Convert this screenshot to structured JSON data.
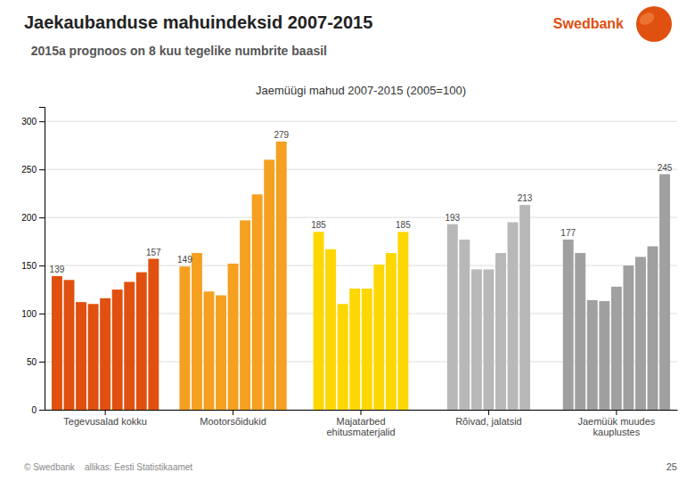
{
  "chart_data": {
    "type": "bar",
    "title": "Jaekaubanduse mahuindeksid 2007-2015",
    "subtitle": "  2015a prognoos on 8 kuu tegelike numbrite baasil",
    "annotations": [
      "Jaemüügi mahud 2007-2015 (2005=100)",
      "Swedbank",
      "© Swedbank    allikas: Eesti Statistikaamet",
      "25"
    ],
    "categories": [
      "Tegevusalad kokku",
      "Mootorsõidukid",
      "Majatarbed\nehitusmaterjalid",
      "Rõivad, jalatsid",
      "Jaemüük muudes\nkauplustes"
    ],
    "colors": [
      "#E05010",
      "#F5A020",
      "#FFD700",
      "#B8B8B8",
      "#A0A0A0"
    ],
    "series": [
      {
        "values": [
          139,
          149,
          185,
          193,
          177
        ],
        "value_labels": [
          "139",
          "149",
          "185",
          "193",
          "177"
        ]
      },
      {
        "values": [
          135,
          163,
          167,
          177,
          163
        ],
        "value_labels": [
          null,
          null,
          null,
          null,
          null
        ]
      },
      {
        "values": [
          112,
          123,
          110,
          146,
          114
        ],
        "value_labels": [
          null,
          null,
          null,
          null,
          null
        ]
      },
      {
        "values": [
          110,
          119,
          126,
          146,
          113
        ],
        "value_labels": [
          null,
          null,
          null,
          null,
          null
        ]
      },
      {
        "values": [
          116,
          152,
          126,
          163,
          128
        ],
        "value_labels": [
          null,
          null,
          null,
          null,
          null
        ]
      },
      {
        "values": [
          125,
          197,
          151,
          195,
          150
        ],
        "value_labels": [
          null,
          null,
          null,
          null,
          null
        ]
      },
      {
        "values": [
          133,
          224,
          163,
          213,
          159
        ],
        "value_labels": [
          null,
          null,
          null,
          "213",
          null
        ]
      },
      {
        "values": [
          143,
          260,
          185,
          null,
          170
        ],
        "value_labels": [
          null,
          null,
          "185",
          null,
          null
        ]
      },
      {
        "values": [
          157,
          279,
          null,
          null,
          245
        ],
        "value_labels": [
          "157",
          "279",
          null,
          null,
          "245"
        ]
      }
    ],
    "ylim": [
      0,
      315
    ],
    "yticks": [
      0,
      50,
      100,
      150,
      200,
      250,
      300
    ],
    "grid": true,
    "data_labels": true
  }
}
